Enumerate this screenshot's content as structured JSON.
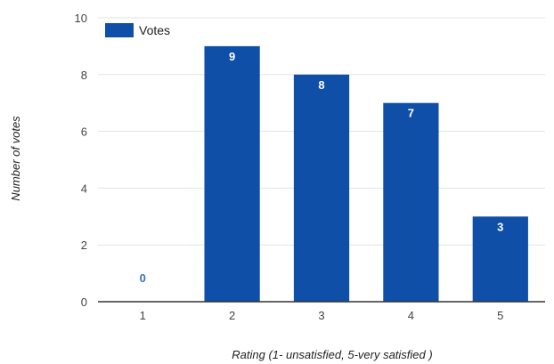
{
  "chart_data": {
    "type": "bar",
    "categories": [
      "1",
      "2",
      "3",
      "4",
      "5"
    ],
    "series": [
      {
        "name": "Votes",
        "values": [
          0,
          9,
          8,
          7,
          3
        ]
      }
    ],
    "data_labels": [
      "0",
      "9",
      "8",
      "7",
      "3"
    ],
    "xlabel": "Rating (1- unsatisfied, 5-very satisfied )",
    "ylabel": "Number of votes",
    "ylim": [
      0,
      10
    ],
    "yticks": [
      "0",
      "2",
      "4",
      "6",
      "8",
      "10"
    ],
    "grid": true,
    "legend_position": "top-left",
    "colors": {
      "bar": "#0f4fa8",
      "label_inside": "#ffffff",
      "label_outside": "#3b6fc4"
    }
  }
}
